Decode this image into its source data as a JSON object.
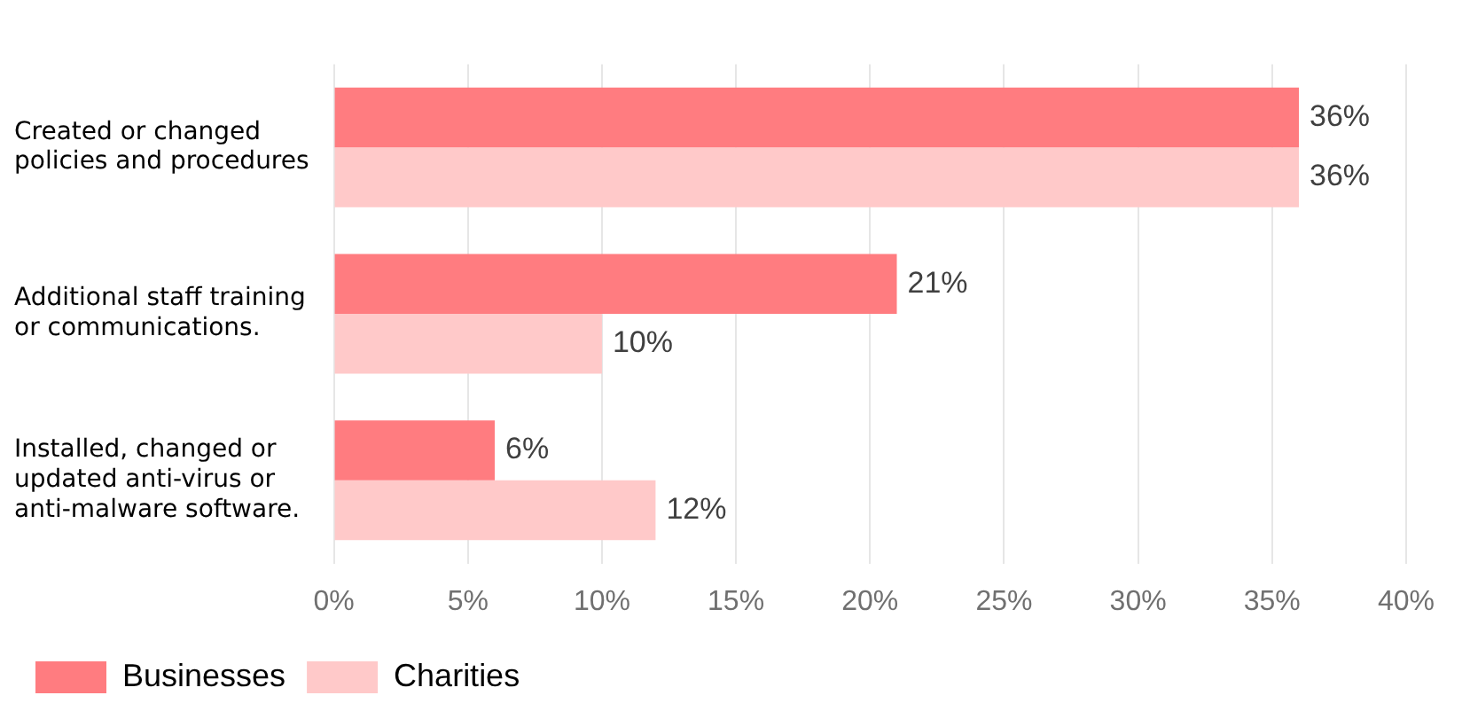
{
  "chart_data": {
    "type": "bar",
    "orientation": "horizontal",
    "categories": [
      "Created or changed policies and procedures",
      "Additional staff training or communications.",
      "Installed, changed or updated anti-virus or anti-malware software."
    ],
    "series": [
      {
        "name": "Businesses",
        "color": "#ff7c80",
        "values": [
          36,
          21,
          6
        ],
        "value_labels": [
          "36%",
          "21%",
          "6%"
        ]
      },
      {
        "name": "Charities",
        "color": "#ffc9c9",
        "values": [
          36,
          10,
          12
        ],
        "value_labels": [
          "36%",
          "10%",
          "12%"
        ]
      }
    ],
    "xlim": [
      0,
      40
    ],
    "xticks": [
      {
        "value": 0,
        "label": "0%"
      },
      {
        "value": 5,
        "label": "5%"
      },
      {
        "value": 10,
        "label": "10%"
      },
      {
        "value": 15,
        "label": "15%"
      },
      {
        "value": 20,
        "label": "20%"
      },
      {
        "value": 25,
        "label": "25%"
      },
      {
        "value": 30,
        "label": "30%"
      },
      {
        "value": 35,
        "label": "35%"
      },
      {
        "value": 40,
        "label": "40%"
      }
    ],
    "grid": "x",
    "legend": "bottom"
  }
}
